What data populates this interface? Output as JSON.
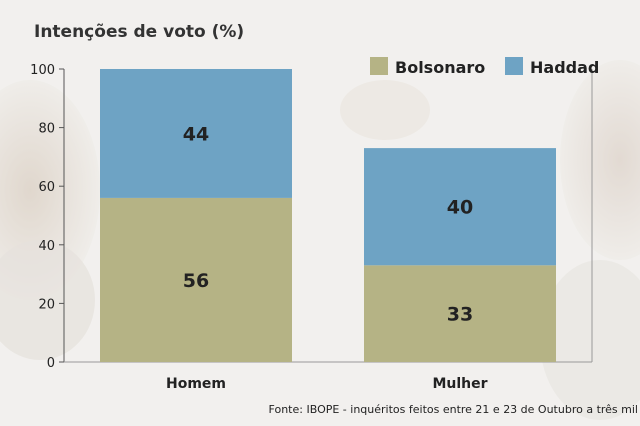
{
  "title": "Intenções de voto (%)",
  "source": "Fonte: IBOPE - inquéritos feitos entre 21 e 23 de Outubro a três mil",
  "chart_data": {
    "type": "bar",
    "stacked": true,
    "title": "Intenções de voto (%)",
    "categories": [
      "Homem",
      "Mulher"
    ],
    "series": [
      {
        "name": "Bolsonaro",
        "values": [
          56,
          33
        ],
        "color": "#b5b385"
      },
      {
        "name": "Haddad",
        "values": [
          44,
          40
        ],
        "color": "#6ea3c4"
      }
    ],
    "ylim": [
      0,
      100
    ],
    "yticks": [
      0,
      20,
      40,
      60,
      80,
      100
    ],
    "grid": false,
    "legend": "top-right"
  }
}
